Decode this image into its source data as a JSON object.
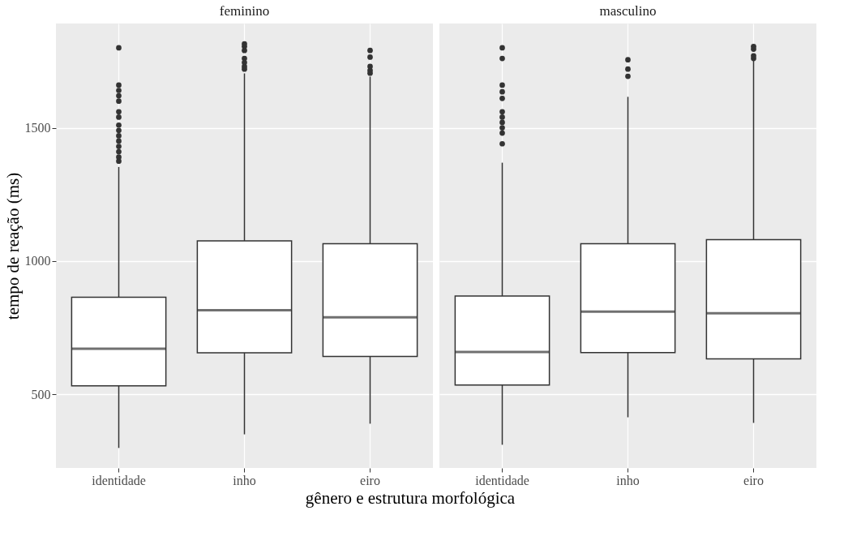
{
  "chart_data": [
    {
      "type": "box",
      "title": "feminino",
      "xlabel": "gênero e estrutura morfológica",
      "ylabel": "tempo de reação (ms)",
      "categories": [
        "identidade",
        "inho",
        "eiro"
      ],
      "ylim": [
        224,
        1891
      ],
      "yticks": [
        500,
        1000,
        1500
      ],
      "grid": true,
      "boxes": [
        {
          "low": 299,
          "q1": 532,
          "median": 671,
          "q3": 864,
          "high": 1353,
          "outliers": [
            1375,
            1390,
            1410,
            1430,
            1450,
            1470,
            1490,
            1510,
            1540,
            1560,
            1600,
            1620,
            1640,
            1660,
            1800
          ]
        },
        {
          "low": 350,
          "q1": 656,
          "median": 816,
          "q3": 1076,
          "high": 1704,
          "outliers": [
            1720,
            1730,
            1745,
            1760,
            1790,
            1805,
            1815
          ]
        },
        {
          "low": 390,
          "q1": 642,
          "median": 789,
          "q3": 1065,
          "high": 1692,
          "outliers": [
            1705,
            1715,
            1730,
            1765,
            1790
          ]
        }
      ]
    },
    {
      "type": "box",
      "title": "masculino",
      "categories": [
        "identidade",
        "inho",
        "eiro"
      ],
      "ylim": [
        224,
        1891
      ],
      "yticks": [
        500,
        1000,
        1500
      ],
      "grid": true,
      "tick_labels": "x",
      "boxes": [
        {
          "low": 311,
          "q1": 535,
          "median": 659,
          "q3": 869,
          "high": 1369,
          "outliers": [
            1440,
            1480,
            1500,
            1520,
            1540,
            1560,
            1610,
            1635,
            1660,
            1760,
            1800
          ]
        },
        {
          "low": 414,
          "q1": 657,
          "median": 810,
          "q3": 1065,
          "high": 1616,
          "outliers": [
            1693,
            1720,
            1755
          ]
        },
        {
          "low": 393,
          "q1": 633,
          "median": 804,
          "q3": 1080,
          "high": 1752,
          "outliers": [
            1760,
            1770,
            1795,
            1805
          ]
        }
      ]
    }
  ]
}
